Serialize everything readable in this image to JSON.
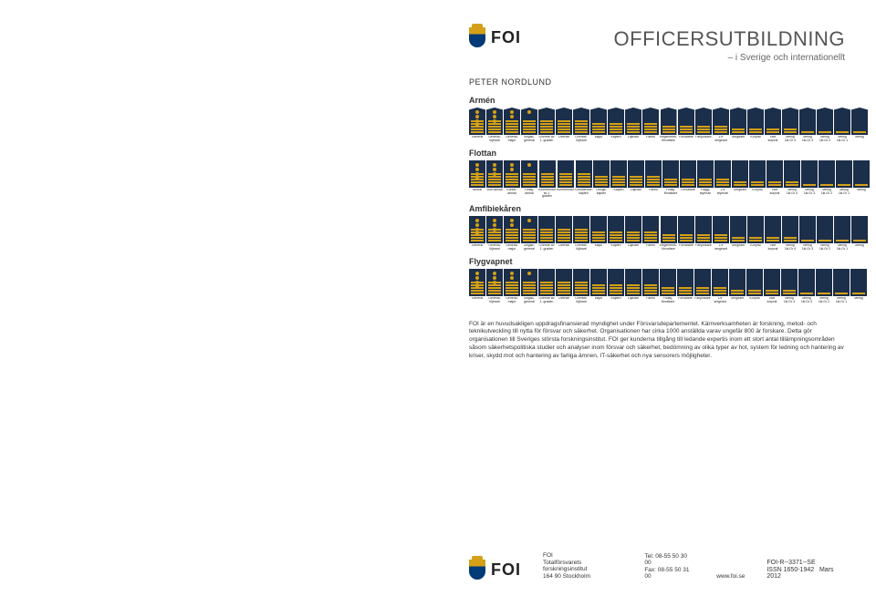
{
  "brand": "FOI",
  "title": "OFFICERSUTBILDNING",
  "subtitle": "– i Sverige och internationellt",
  "author": "PETER NORDLUND",
  "sections": [
    {
      "label": "Armén",
      "shape": "shield",
      "bg": "#1b2e4a",
      "stripe": "#d4a017",
      "ranks": [
        "General",
        "General-löjtnant",
        "General-major",
        "Brigad-general",
        "Överste av 1. graden",
        "Överste",
        "Överste-löjtnant",
        "Major",
        "Kapten",
        "Löjtnant",
        "Fänrik",
        "Regements-förvaltare",
        "Förvaltare",
        "Fanjunkare",
        "1:e sergeant",
        "Sergeant",
        "Korpral",
        "Vice korpral",
        "Menig 1kl.Gr 4",
        "Menig 1kl.Gr 3",
        "Menig 1kl.Gr 2",
        "Menig 1kl.Gr 1",
        "Menig"
      ]
    },
    {
      "label": "Flottan",
      "shape": "rect",
      "bg": "#1b2e4a",
      "stripe": "#d4a017",
      "ranks": [
        "Amiral",
        "Vice-amiral",
        "Konter-amiral",
        "Flottilj-amiral",
        "Kommendör av 1. graden",
        "Kommendör",
        "Kommendör-kapten",
        "Örlogs-kapten",
        "Kapten",
        "Löjtnant",
        "Fänrik",
        "Flottilj-förvaltare",
        "Förvaltare",
        "Flagg-styrman",
        "1:e styrman",
        "Sergeant",
        "Korpral",
        "Vice korpral",
        "Menig 1kl.Gr 4",
        "Menig 1kl.Gr 3",
        "Menig 1kl.Gr 2",
        "Menig 1kl.Gr 1",
        "Menig"
      ]
    },
    {
      "label": "Amfibiekåren",
      "shape": "rect",
      "bg": "#1b2e4a",
      "stripe": "#d4a017",
      "ranks": [
        "General",
        "General-löjtnant",
        "General-major",
        "Brigad-general",
        "Överste av 1. graden",
        "Överste",
        "Överste-löjtnant",
        "Major",
        "Kapten",
        "Löjtnant",
        "Fänrik",
        "Regements-förvaltare",
        "Förvaltare",
        "Fanjunkare",
        "1:e sergeant",
        "Sergeant",
        "Korpral",
        "Vice korpral",
        "Menig 1kl.Gr 4",
        "Menig 1kl.Gr 3",
        "Menig 1kl.Gr 2",
        "Menig 1kl.Gr 1",
        "Menig"
      ]
    },
    {
      "label": "Flygvapnet",
      "shape": "rect",
      "bg": "#1b2e4a",
      "stripe": "#d4a017",
      "ranks": [
        "General",
        "General-löjtnant",
        "General-major",
        "Brigad-general",
        "Överste av 1. graden",
        "Överste",
        "Överste-löjtnant",
        "Major",
        "Kapten",
        "Löjtnant",
        "Fänrik",
        "Flottilj-förvaltare",
        "Förvaltare",
        "Fanjunkare",
        "1:e sergeant",
        "Sergeant",
        "Korpral",
        "Vice korpral",
        "Menig 1kl.Gr 4",
        "Menig 1kl.Gr 3",
        "Menig 1kl.Gr 2",
        "Menig 1kl.Gr 1",
        "Menig"
      ]
    }
  ],
  "body_text": "FOI är en huvudsakligen uppdragsfinansierad myndighet under Försvarsdepartementet. Kärnverksamheten är forskning, metod- och teknikutveckling till nytta för försvar och säkerhet. Organisationen har cirka 1000 anställda varav ungefär 800 är forskare. Detta gör organisationen till Sveriges största forskningsinstitut. FOI ger kunderna tillgång till ledande expertis inom ett stort antal tillämpningsområden såsom säkerhetspolitiska studier och analyser inom försvar och säkerhet, bedömning av olika typer av hot, system för ledning och hantering av kriser, skydd mot och hantering av farliga ämnen, IT-säkerhet och nya sensorers möjligheter.",
  "footer": {
    "org1": "FOI",
    "org2": "Totalförsvarets forskningsinstitut",
    "org3": "164 90 Stockholm",
    "tel": "Tel: 08-55 50 30 00",
    "fax": "Fax: 08-55 50 31 00",
    "web": "www.foi.se",
    "ref": "FOI-R--3371--SE",
    "issn": "ISSN 1650-1942",
    "date": "Mars 2012"
  },
  "colors": {
    "navy": "#1b2e4a",
    "gold": "#d4a017",
    "text": "#333333",
    "bg": "#ffffff"
  }
}
